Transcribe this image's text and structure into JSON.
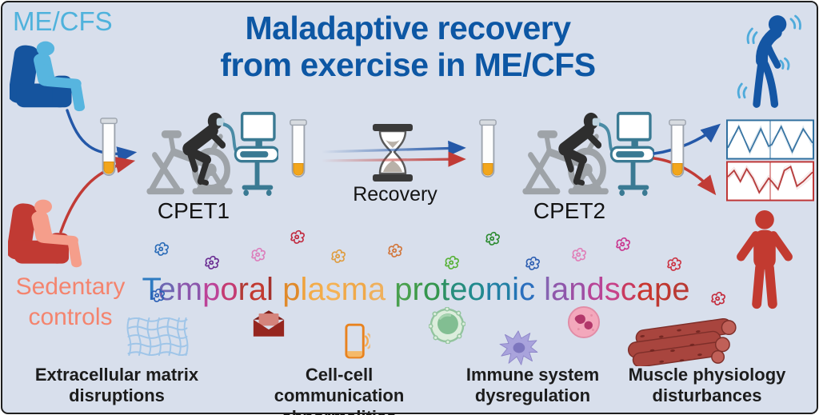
{
  "figure_title": {
    "line1": "Maladaptive recovery",
    "line2": "from exercise in ME/CFS"
  },
  "cohorts": {
    "mecfs_label": "ME/CFS",
    "sedentary_label_line1": "Sedentary",
    "sedentary_label_line2": "controls"
  },
  "protocol": {
    "cpet1_label": "CPET1",
    "recovery_label": "Recovery",
    "cpet2_label": "CPET2"
  },
  "landscape_headline": {
    "text": "Temporal plasma proteomic landscape",
    "letter_colors": [
      "#2E7BC1",
      "#6F66B2",
      "#8B57AC",
      "#BC4398",
      "#C43B72",
      "#B33A36",
      "#C23A31",
      "#A5312C",
      "#E08A2B",
      "#EFA23C",
      "#F3AC49",
      "#F5B254",
      "#F0A94A",
      "#EFB05C",
      "#49A04E",
      "#3F9B49",
      "#35964E",
      "#2D9063",
      "#278D7D",
      "#218A8E",
      "#2280A4",
      "#2374B5",
      "#2B6FBE",
      "#8763B1",
      "#8F57AB",
      "#9D4FA4",
      "#B84597",
      "#C74289",
      "#C93A60",
      "#C9362F",
      "#BF3831",
      "#B93A34"
    ]
  },
  "outcomes": [
    {
      "icon": "extracellular-matrix-mesh-icon",
      "line1": "Extracellular matrix",
      "line2": "disruptions"
    },
    {
      "icon": "envelope-icon, phone-icon",
      "line1": "Cell-cell communication",
      "line2": "abnormalities"
    },
    {
      "icon": "lymphocyte-icon, dendritic-cell-icon, eosinophil-icon",
      "line1": "Immune system",
      "line2": "dysregulation"
    },
    {
      "icon": "muscle-fiber-icon",
      "line1": "Muscle physiology",
      "line2": "disturbances"
    }
  ],
  "scene_icons": [
    "armchair-patient-icon",
    "armchair-control-icon",
    "blood-sample-tube-icon",
    "cpet-bike-and-metabolic-cart-icon",
    "hourglass-icon",
    "fatigued-person-icon",
    "healthy-standing-person-icon",
    "protein-squiggle-icon",
    "blue-trajectories-chart-icon",
    "red-trajectories-chart-icon"
  ],
  "protein_squiggle_colors": [
    "#2B6CB8",
    "#6B2E93",
    "#DC7FBC",
    "#C12B40",
    "#DF9C3E",
    "#D2763A",
    "#57B237",
    "#2D8B31",
    "#2E5FB2",
    "#E07FB8",
    "#C9368F",
    "#CC3342",
    "#C42B3B",
    "#2B5FB5"
  ],
  "colors": {
    "background": "#D8DFEC",
    "border": "#1E1E1E",
    "title_blue": "#0D57A4",
    "mecfs_accent": "#4FB2DC",
    "mecfs_chair": "#15549E",
    "sedentary_accent": "#F4846E",
    "sedentary_chair": "#C13A33",
    "arrow_blue": "#2458A8",
    "arrow_red": "#C13B36",
    "equipment_teal": "#3A7A93",
    "tube_serum_orange": "#F2A61C",
    "chart_blue": "#2E6E9E",
    "chart_red": "#B23232",
    "label_black": "#1C1C1C"
  }
}
